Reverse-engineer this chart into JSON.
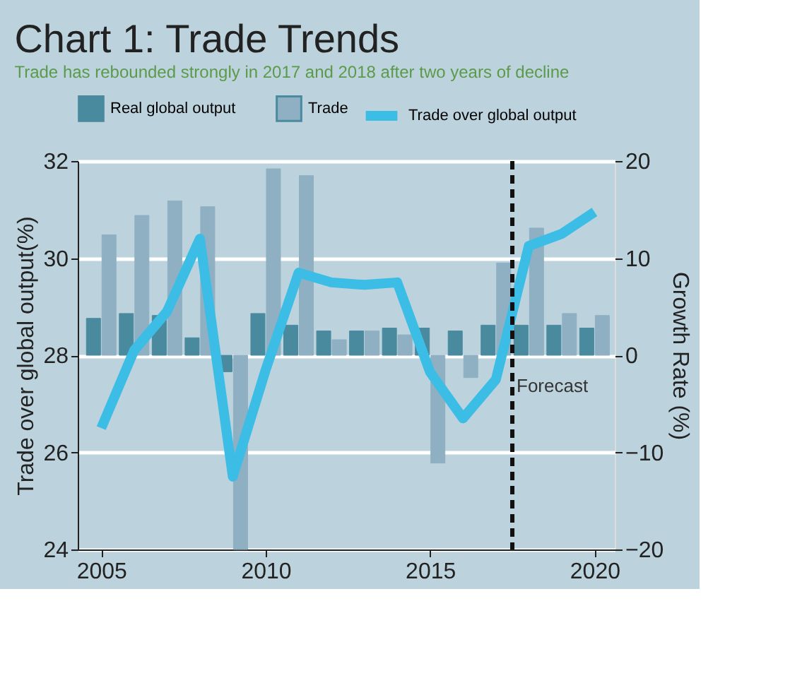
{
  "chart_data": {
    "type": "bar",
    "title": "Chart 1: Trade Trends",
    "subtitle": "Trade has rebounded strongly in 2017 and 2018 after two years of decline",
    "x": [
      2005,
      2006,
      2007,
      2008,
      2009,
      2010,
      2011,
      2012,
      2013,
      2014,
      2015,
      2016,
      2017,
      2018,
      2019,
      2020
    ],
    "series": [
      {
        "name": "Real global output",
        "color": "#4a8a9e",
        "axis": "y2",
        "values": [
          3.8,
          4.3,
          4.1,
          1.8,
          -1.7,
          4.3,
          3.1,
          2.5,
          2.5,
          2.8,
          2.8,
          2.5,
          3.1,
          3.1,
          3.1,
          2.8
        ]
      },
      {
        "name": "Trade",
        "color": "#8fb0c2",
        "axis": "y2",
        "values": [
          12.4,
          14.4,
          15.9,
          15.3,
          -20,
          19.2,
          18.5,
          1.6,
          2.5,
          2.1,
          -11.1,
          -2.3,
          9.5,
          13.1,
          4.3,
          4.1
        ]
      },
      {
        "name": "Trade over global output",
        "type": "line",
        "color": "#3bbde6",
        "values": [
          26.5,
          28.1,
          28.9,
          30.4,
          25.5,
          27.7,
          29.7,
          29.5,
          29.45,
          29.5,
          27.65,
          26.7,
          27.5,
          30.25,
          30.5,
          30.95
        ]
      }
    ],
    "xlim": [
      2004.5,
      2020.4
    ],
    "xticks": [
      2005,
      2010,
      2015,
      2020
    ],
    "ylim": [
      24,
      32
    ],
    "yticks": [
      24,
      26,
      28,
      30,
      32
    ],
    "y2lim": [
      -20,
      20
    ],
    "y2ticks": [
      -20,
      -10,
      0,
      10,
      20
    ],
    "ylabel": "Trade over global output(%)",
    "y2label": "Growth Rate (%)",
    "ref_lines": [
      {
        "axis": "x",
        "value": 2017.5,
        "label": "Forecast",
        "color": "#111111",
        "line_style": "dashed"
      }
    ],
    "grid": "y",
    "legend": "top"
  }
}
